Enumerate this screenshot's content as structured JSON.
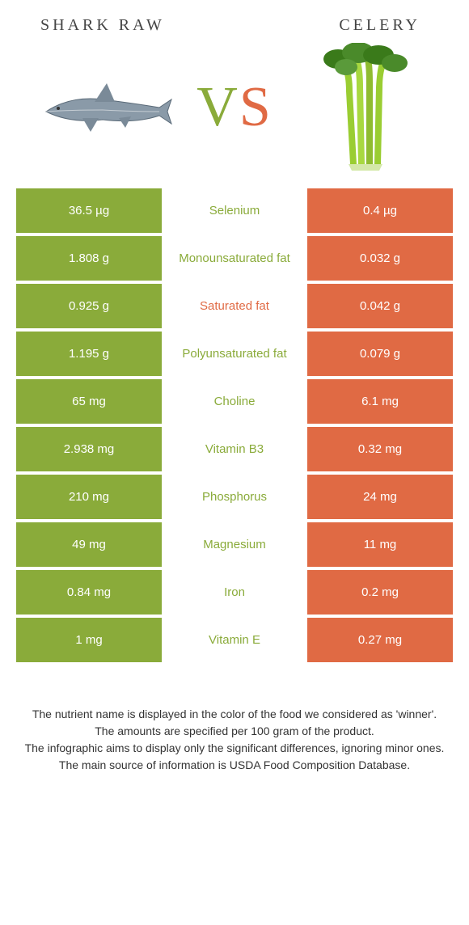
{
  "colors": {
    "left_bg": "#8aab3a",
    "right_bg": "#e06a44",
    "mid_left_text": "#8aab3a",
    "mid_right_text": "#e06a44",
    "page_bg": "#ffffff",
    "title_text": "#444444",
    "footer_text": "#333333"
  },
  "header": {
    "left_title": "Shark raw",
    "right_title": "Celery",
    "vs_v": "V",
    "vs_s": "S"
  },
  "rows": [
    {
      "left": "36.5 µg",
      "mid": "Selenium",
      "right": "0.4 µg",
      "winner": "left"
    },
    {
      "left": "1.808 g",
      "mid": "Monounsaturated fat",
      "right": "0.032 g",
      "winner": "left"
    },
    {
      "left": "0.925 g",
      "mid": "Saturated fat",
      "right": "0.042 g",
      "winner": "right"
    },
    {
      "left": "1.195 g",
      "mid": "Polyunsaturated fat",
      "right": "0.079 g",
      "winner": "left"
    },
    {
      "left": "65 mg",
      "mid": "Choline",
      "right": "6.1 mg",
      "winner": "left"
    },
    {
      "left": "2.938 mg",
      "mid": "Vitamin B3",
      "right": "0.32 mg",
      "winner": "left"
    },
    {
      "left": "210 mg",
      "mid": "Phosphorus",
      "right": "24 mg",
      "winner": "left"
    },
    {
      "left": "49 mg",
      "mid": "Magnesium",
      "right": "11 mg",
      "winner": "left"
    },
    {
      "left": "0.84 mg",
      "mid": "Iron",
      "right": "0.2 mg",
      "winner": "left"
    },
    {
      "left": "1 mg",
      "mid": "Vitamin E",
      "right": "0.27 mg",
      "winner": "left"
    }
  ],
  "footer": {
    "line1": "The nutrient name is displayed in the color of the food we considered as 'winner'.",
    "line2": "The amounts are specified per 100 gram of the product.",
    "line3": "The infographic aims to display only the significant differences, ignoring minor ones.",
    "line4": "The main source of information is USDA Food Composition Database."
  }
}
